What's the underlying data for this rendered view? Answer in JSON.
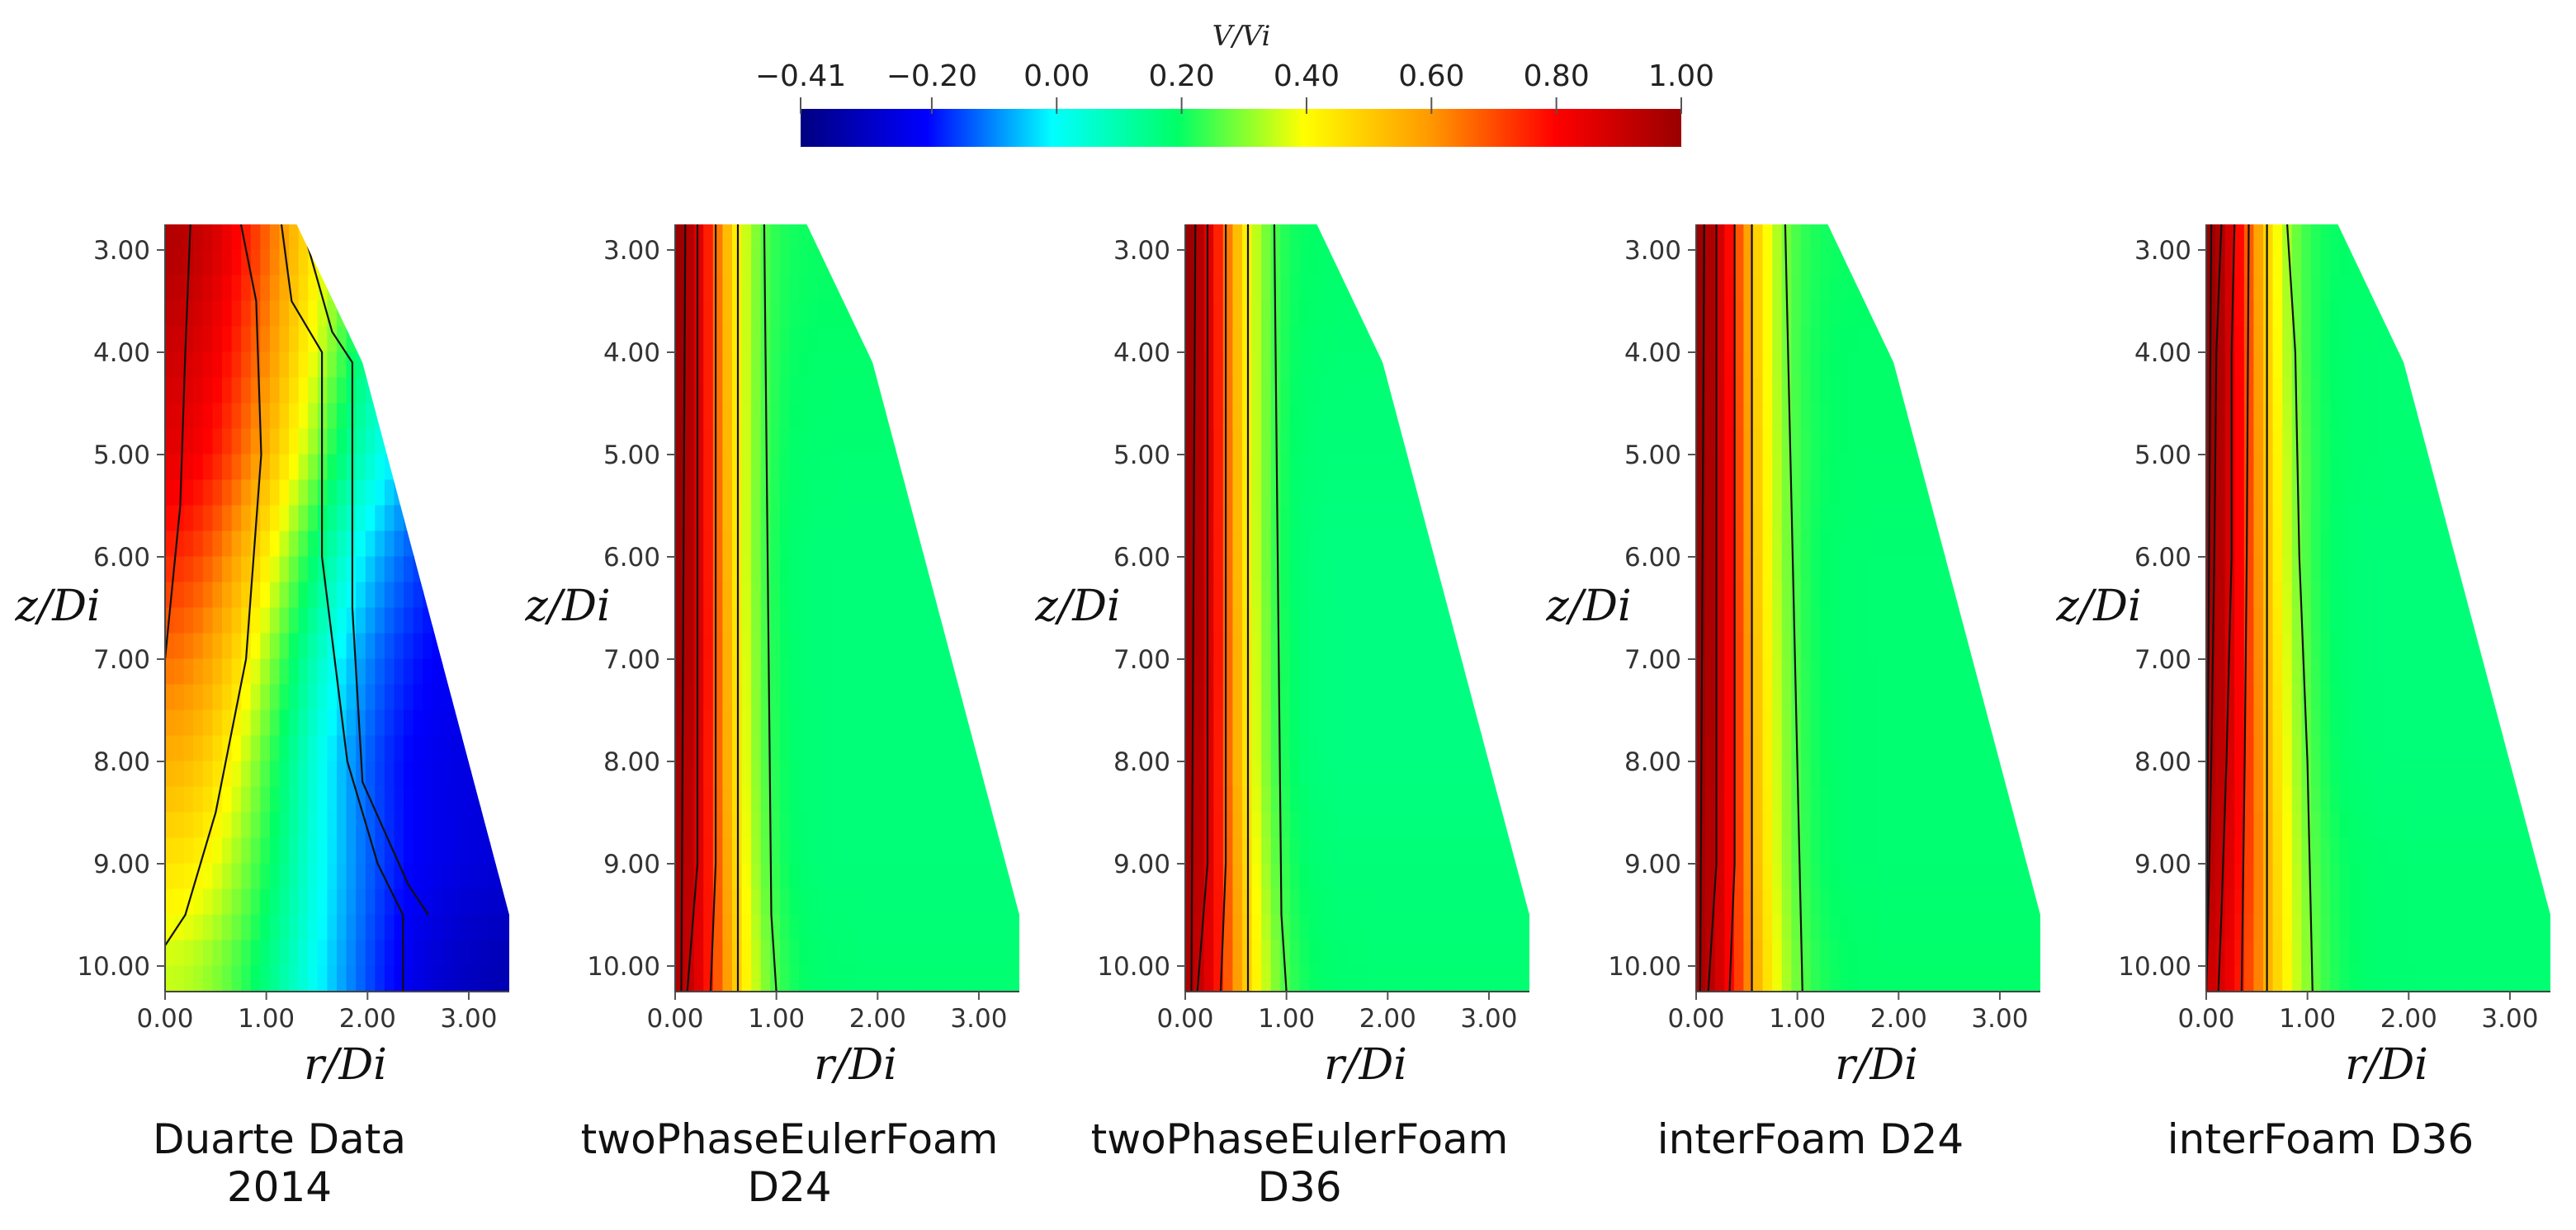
{
  "chart_data": {
    "type": "heatmap",
    "colorbar": {
      "title": "V/V_i",
      "title_display": "V/Vi",
      "range": [
        -0.41,
        1.0
      ],
      "tick_values": [
        -0.41,
        -0.2,
        0.0,
        0.2,
        0.4,
        0.6,
        0.8,
        1.0
      ],
      "tick_labels": [
        "−0.41",
        "−0.20",
        "0.00",
        "0.20",
        "0.40",
        "0.60",
        "0.80",
        "1.00"
      ],
      "colormap": [
        "#000080",
        "#0000ff",
        "#00ffff",
        "#00ff66",
        "#ffff00",
        "#ff9900",
        "#ff0000",
        "#990000"
      ]
    },
    "x_axis": {
      "label": "r/D_i",
      "label_display": "r/Di",
      "ticks": [
        0.0,
        1.0,
        2.0,
        3.0
      ],
      "tick_labels": [
        "0.00",
        "1.00",
        "2.00",
        "3.00"
      ],
      "range": [
        0.0,
        3.4
      ]
    },
    "y_axis": {
      "label": "z/D_i",
      "label_display": "z/Di",
      "ticks": [
        3.0,
        4.0,
        5.0,
        6.0,
        7.0,
        8.0,
        9.0,
        10.0
      ],
      "tick_labels": [
        "3.00",
        "4.00",
        "5.00",
        "6.00",
        "7.00",
        "8.00",
        "9.00",
        "10.00"
      ],
      "range": [
        2.75,
        10.25
      ],
      "inverted": true
    },
    "domain_boundary": {
      "z": [
        2.75,
        4.1,
        9.5,
        10.25
      ],
      "r_max": [
        1.3,
        1.95,
        3.4,
        3.4
      ]
    },
    "panels": [
      {
        "title_lines": [
          "Duarte Data",
          "2014"
        ],
        "z_profile": [
          3.0,
          4.0,
          5.0,
          6.0,
          7.0,
          8.0,
          9.0,
          10.0
        ],
        "centerline_value": [
          0.95,
          0.9,
          0.85,
          0.75,
          0.65,
          0.55,
          0.45,
          0.35
        ],
        "decay_width": [
          1.9,
          1.85,
          1.75,
          1.6,
          1.5,
          1.5,
          1.6,
          1.8
        ],
        "far_field_value": [
          -0.2,
          -0.2,
          -0.22,
          -0.24,
          -0.25,
          -0.27,
          -0.28,
          -0.35
        ],
        "contours": [
          {
            "z": [
              2.75,
              3.7
            ],
            "r": [
              0.0,
              0.0
            ]
          },
          {
            "z": [
              2.75,
              4.0,
              5.5,
              6.5,
              7.0
            ],
            "r": [
              0.25,
              0.2,
              0.15,
              0.05,
              0.0
            ]
          },
          {
            "z": [
              2.75,
              3.5,
              5.0,
              7.0,
              8.5,
              9.5,
              9.8
            ],
            "r": [
              0.75,
              0.9,
              0.95,
              0.8,
              0.5,
              0.2,
              0.0
            ]
          },
          {
            "z": [
              2.75,
              3.5,
              4.0,
              6.0,
              8.0,
              9.0,
              9.5,
              10.25
            ],
            "r": [
              1.15,
              1.25,
              1.55,
              1.55,
              1.8,
              2.1,
              2.35,
              2.35
            ]
          },
          {
            "z": [
              2.75,
              3.8,
              4.1,
              6.5,
              8.2,
              9.2,
              9.5
            ],
            "r": [
              1.35,
              1.65,
              1.85,
              1.85,
              1.95,
              2.4,
              2.6
            ]
          }
        ]
      },
      {
        "title_lines": [
          "twoPhaseEulerFoam",
          "D24"
        ],
        "z_profile": [
          3.0,
          4.0,
          5.0,
          6.0,
          7.0,
          8.0,
          9.0,
          10.0
        ],
        "centerline_value": [
          1.0,
          1.0,
          1.0,
          1.0,
          1.0,
          0.98,
          0.97,
          0.95
        ],
        "decay_width": [
          0.55,
          0.56,
          0.57,
          0.58,
          0.59,
          0.6,
          0.62,
          0.65
        ],
        "far_field_value": [
          0.2,
          0.19,
          0.18,
          0.17,
          0.17,
          0.17,
          0.17,
          0.18
        ],
        "contours": [
          {
            "z": [
              2.75,
              10.25
            ],
            "r": [
              0.1,
              0.06
            ]
          },
          {
            "z": [
              2.75,
              9.0,
              10.25
            ],
            "r": [
              0.22,
              0.22,
              0.12
            ]
          },
          {
            "z": [
              2.75,
              9.0,
              10.25
            ],
            "r": [
              0.4,
              0.4,
              0.35
            ]
          },
          {
            "z": [
              2.75,
              10.25
            ],
            "r": [
              0.62,
              0.62
            ]
          },
          {
            "z": [
              2.75,
              9.5,
              10.25
            ],
            "r": [
              0.88,
              0.95,
              1.0
            ]
          }
        ]
      },
      {
        "title_lines": [
          "twoPhaseEulerFoam",
          "D36"
        ],
        "z_profile": [
          3.0,
          4.0,
          5.0,
          6.0,
          7.0,
          8.0,
          9.0,
          10.0
        ],
        "centerline_value": [
          1.0,
          1.0,
          1.0,
          1.0,
          1.0,
          0.98,
          0.97,
          0.95
        ],
        "decay_width": [
          0.55,
          0.56,
          0.57,
          0.58,
          0.59,
          0.6,
          0.62,
          0.65
        ],
        "far_field_value": [
          0.19,
          0.18,
          0.17,
          0.16,
          0.16,
          0.16,
          0.17,
          0.18
        ],
        "contours": [
          {
            "z": [
              2.75,
              10.25
            ],
            "r": [
              0.1,
              0.06
            ]
          },
          {
            "z": [
              2.75,
              9.0,
              10.25
            ],
            "r": [
              0.22,
              0.22,
              0.12
            ]
          },
          {
            "z": [
              2.75,
              9.0,
              10.25
            ],
            "r": [
              0.4,
              0.4,
              0.35
            ]
          },
          {
            "z": [
              2.75,
              10.25
            ],
            "r": [
              0.62,
              0.62
            ]
          },
          {
            "z": [
              2.75,
              9.5,
              10.25
            ],
            "r": [
              0.88,
              0.95,
              1.0
            ]
          }
        ]
      },
      {
        "title_lines": [
          "interFoam D24"
        ],
        "z_profile": [
          3.0,
          4.0,
          5.0,
          6.0,
          7.0,
          8.0,
          9.0,
          10.0
        ],
        "centerline_value": [
          1.0,
          1.0,
          1.0,
          1.0,
          1.0,
          0.99,
          0.98,
          0.97
        ],
        "decay_width": [
          0.6,
          0.61,
          0.62,
          0.63,
          0.64,
          0.65,
          0.66,
          0.68
        ],
        "far_field_value": [
          0.2,
          0.19,
          0.19,
          0.18,
          0.18,
          0.18,
          0.18,
          0.19
        ],
        "contours": [
          {
            "z": [
              2.75,
              10.25
            ],
            "r": [
              0.08,
              0.04
            ]
          },
          {
            "z": [
              2.75,
              9.0,
              10.25
            ],
            "r": [
              0.2,
              0.2,
              0.12
            ]
          },
          {
            "z": [
              2.75,
              9.0,
              10.25
            ],
            "r": [
              0.38,
              0.38,
              0.33
            ]
          },
          {
            "z": [
              2.75,
              10.25
            ],
            "r": [
              0.55,
              0.55
            ]
          },
          {
            "z": [
              2.75,
              10.25
            ],
            "r": [
              0.88,
              1.05
            ]
          }
        ]
      },
      {
        "title_lines": [
          "interFoam D36"
        ],
        "z_profile": [
          3.0,
          4.0,
          5.0,
          6.0,
          7.0,
          8.0,
          9.0,
          10.0
        ],
        "centerline_value": [
          1.0,
          1.0,
          0.99,
          0.98,
          0.97,
          0.96,
          0.94,
          0.9
        ],
        "decay_width": [
          0.6,
          0.62,
          0.64,
          0.66,
          0.68,
          0.7,
          0.72,
          0.75
        ],
        "far_field_value": [
          0.19,
          0.18,
          0.18,
          0.17,
          0.17,
          0.17,
          0.18,
          0.18
        ],
        "contours": [
          {
            "z": [
              2.75,
              10.25
            ],
            "r": [
              0.05,
              0.0
            ]
          },
          {
            "z": [
              2.75,
              4.0,
              6.0,
              8.0,
              9.5,
              10.25
            ],
            "r": [
              0.15,
              0.1,
              0.08,
              0.05,
              0.02,
              0.0
            ]
          },
          {
            "z": [
              2.75,
              4.0,
              6.0,
              8.0,
              9.5,
              10.25
            ],
            "r": [
              0.28,
              0.25,
              0.25,
              0.2,
              0.15,
              0.12
            ]
          },
          {
            "z": [
              2.75,
              6.0,
              8.0,
              10.25
            ],
            "r": [
              0.42,
              0.4,
              0.38,
              0.35
            ]
          },
          {
            "z": [
              2.75,
              10.25
            ],
            "r": [
              0.6,
              0.6
            ]
          },
          {
            "z": [
              2.75,
              4.0,
              6.0,
              8.0,
              10.25
            ],
            "r": [
              0.8,
              0.88,
              0.92,
              1.0,
              1.05
            ]
          }
        ]
      }
    ]
  }
}
